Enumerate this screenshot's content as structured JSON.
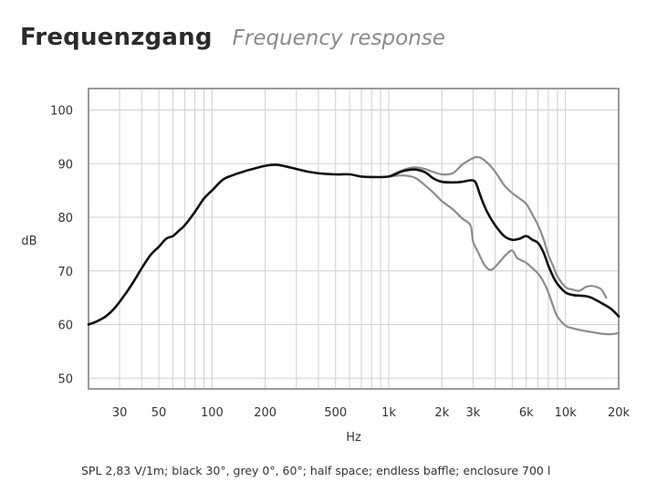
{
  "title": {
    "main": "Frequenzgang",
    "sub": "Frequency response"
  },
  "caption": "SPL 2,83 V/1m; black 30°, grey 0°, 60°; half space; endless baffle; enclosure 700 l",
  "colors": {
    "black_curve": "#111111",
    "grey_curve": "#8c8c8c",
    "grid": "#cfcfcf",
    "frame": "#9a9a9a"
  },
  "chart_data": {
    "type": "line",
    "title": "Frequenzgang",
    "subtitle": "Frequency response",
    "xlabel": "Hz",
    "ylabel": "dB",
    "x_scale": "log",
    "xlim": [
      20,
      20000
    ],
    "ylim": [
      48,
      104
    ],
    "grid": true,
    "x_ticks": [
      30,
      50,
      100,
      200,
      500,
      1000,
      2000,
      3000,
      6000,
      10000,
      20000
    ],
    "x_tick_labels": [
      "30",
      "50",
      "100",
      "200",
      "500",
      "1k",
      "2k",
      "3k",
      "6k",
      "10k",
      "20k"
    ],
    "y_ticks": [
      50,
      60,
      70,
      80,
      90,
      100
    ],
    "y_tick_labels": [
      "50",
      "60",
      "70",
      "80",
      "90",
      "100"
    ],
    "series": [
      {
        "name": "black 30°",
        "color": "#111111",
        "x": [
          20,
          22,
          25,
          28,
          32,
          36,
          40,
          45,
          50,
          55,
          60,
          65,
          70,
          80,
          90,
          100,
          115,
          130,
          150,
          170,
          200,
          230,
          260,
          300,
          350,
          400,
          500,
          600,
          700,
          800,
          1000,
          1200,
          1400,
          1600,
          1800,
          2000,
          2300,
          2600,
          2900,
          3100,
          3300,
          3600,
          4000,
          4500,
          5000,
          5500,
          6000,
          6500,
          7000,
          7500,
          8000,
          8500,
          9000,
          10000,
          11000,
          12000,
          13000,
          14000,
          15000,
          16000,
          17000,
          18000,
          19000,
          20000
        ],
        "y": [
          60,
          60.5,
          61.5,
          63,
          65.5,
          68,
          70.5,
          73,
          74.5,
          76,
          76.5,
          77.5,
          78.5,
          81,
          83.5,
          85,
          87,
          87.8,
          88.5,
          89,
          89.6,
          89.8,
          89.5,
          89,
          88.5,
          88.2,
          88,
          88,
          87.6,
          87.5,
          87.6,
          88.6,
          88.9,
          88.4,
          87.2,
          86.6,
          86.5,
          86.6,
          86.9,
          86.5,
          84,
          81,
          78.5,
          76.5,
          75.8,
          76,
          76.5,
          75.8,
          75.2,
          73.5,
          71,
          69,
          67.6,
          66,
          65.5,
          65.4,
          65.3,
          65,
          64.5,
          64,
          63.5,
          63,
          62.3,
          61.5
        ]
      },
      {
        "name": "grey 0°",
        "color": "#8c8c8c",
        "x": [
          1000,
          1200,
          1400,
          1600,
          1800,
          2000,
          2300,
          2600,
          2900,
          3100,
          3300,
          3600,
          4000,
          4500,
          5000,
          5500,
          6000,
          6500,
          7000,
          7500,
          8000,
          8500,
          9000,
          10000,
          11000,
          12000,
          13000,
          14000,
          15000,
          16000,
          17000
        ],
        "y": [
          87.6,
          88.8,
          89.3,
          89,
          88.4,
          88,
          88.2,
          89.8,
          90.8,
          91.2,
          91.1,
          90.2,
          88.5,
          86,
          84.5,
          83.5,
          82.5,
          80.5,
          78.5,
          76,
          73,
          71,
          69,
          67,
          66.5,
          66.3,
          67,
          67.2,
          67,
          66.5,
          65
        ]
      },
      {
        "name": "grey 60°",
        "color": "#8c8c8c",
        "x": [
          1000,
          1200,
          1400,
          1600,
          1800,
          2000,
          2300,
          2600,
          2900,
          3000,
          3200,
          3500,
          3800,
          4200,
          4600,
          5000,
          5300,
          5600,
          6000,
          6500,
          7000,
          7500,
          8000,
          8500,
          9000,
          10000,
          11000,
          12000,
          14000,
          16000,
          18000,
          20000
        ],
        "y": [
          87.6,
          87.8,
          87.4,
          86,
          84.5,
          83,
          81.5,
          79.8,
          78.5,
          75.5,
          73.5,
          71,
          70.2,
          71.5,
          73,
          73.8,
          72.5,
          72,
          71.5,
          70.5,
          69.5,
          68,
          66,
          63.5,
          61.5,
          59.8,
          59.3,
          59,
          58.6,
          58.3,
          58.2,
          58.4
        ]
      }
    ]
  }
}
